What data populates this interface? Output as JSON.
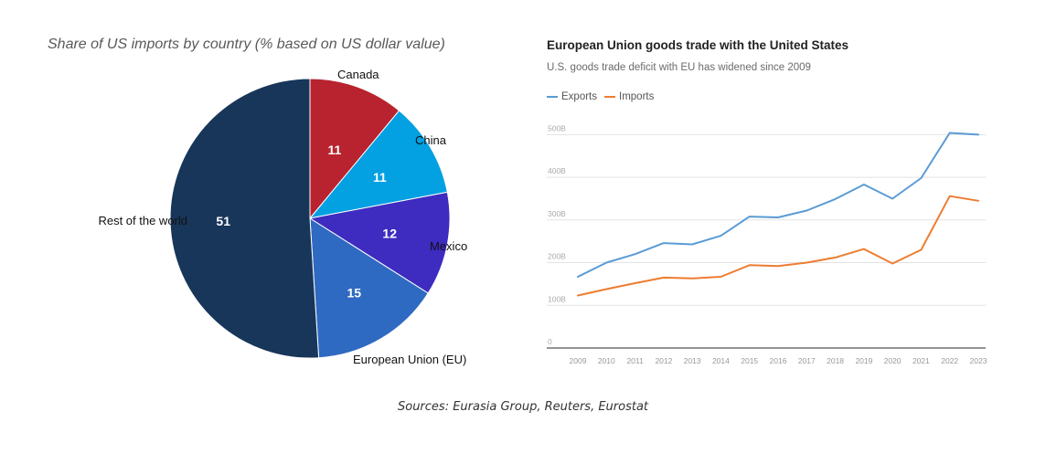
{
  "pie_chart": {
    "title": "Share of US imports by country (% based on US dollar value)",
    "colors": {
      "Canada": "#b8232f",
      "China": "#03a0e2",
      "Mexico": "#3e2bbf",
      "European Union (EU)": "#2e6ac1",
      "Rest of the world": "#18365a"
    }
  },
  "line_chart": {
    "title": "European Union goods trade with the United States",
    "subtitle": "U.S. goods trade deficit with EU has widened since 2009",
    "colors": {
      "Exports": "#5b9bd5",
      "Imports": "#ed7d31"
    }
  },
  "source_note": "Sources: Eurasia Group, Reuters, Eurostat",
  "chart_data": [
    {
      "type": "pie",
      "title": "Share of US imports by country (% based on US dollar value)",
      "categories": [
        "Canada",
        "China",
        "Mexico",
        "European Union (EU)",
        "Rest of the world"
      ],
      "values": [
        11,
        11,
        12,
        15,
        51
      ],
      "value_labels": [
        "11",
        "11",
        "12",
        "15",
        "51"
      ]
    },
    {
      "type": "line",
      "title": "European Union goods trade with the United States",
      "subtitle": "U.S. goods trade deficit with EU has widened since 2009",
      "x": [
        2009,
        2010,
        2011,
        2012,
        2013,
        2014,
        2015,
        2016,
        2017,
        2018,
        2019,
        2020,
        2021,
        2022,
        2023
      ],
      "x_tick_labels": [
        "2009",
        "2010",
        "2011",
        "2012",
        "2013",
        "2014",
        "2015",
        "2016",
        "2017",
        "2018",
        "2019",
        "2020",
        "2021",
        "2022",
        "2023"
      ],
      "series": [
        {
          "name": "Exports",
          "values": [
            167,
            200,
            220,
            246,
            243,
            263,
            308,
            306,
            322,
            349,
            383,
            350,
            398,
            504,
            500
          ]
        },
        {
          "name": "Imports",
          "values": [
            123,
            138,
            152,
            165,
            163,
            167,
            194,
            192,
            200,
            212,
            232,
            198,
            230,
            356,
            345
          ]
        }
      ],
      "y_ticks": [
        0,
        100,
        200,
        300,
        400,
        500
      ],
      "y_tick_labels": [
        "0",
        "100B",
        "200B",
        "300B",
        "400B",
        "500B"
      ],
      "ylim": [
        0,
        550
      ],
      "grid": true,
      "legend": "top-left"
    }
  ]
}
